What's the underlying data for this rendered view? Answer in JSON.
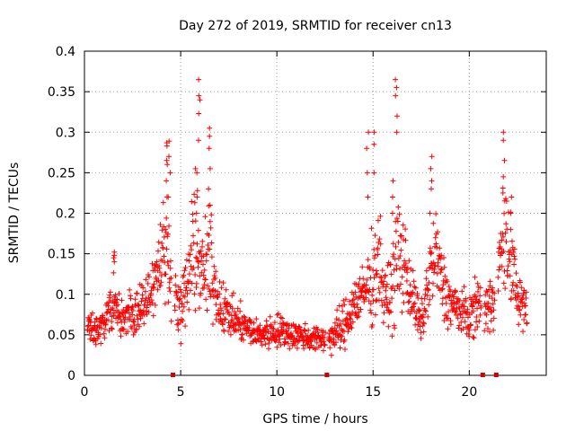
{
  "chart_data": {
    "type": "scatter",
    "title": "Day 272 of 2019, SRMTID for receiver cn13",
    "xlabel": "GPS time / hours",
    "ylabel": "SRMTID / TECUs",
    "xlim": [
      0,
      24
    ],
    "ylim": [
      0,
      0.4
    ],
    "xticks": [
      0,
      5,
      10,
      15,
      20
    ],
    "xtick_labels": [
      "0",
      "5",
      "10",
      "15",
      "20"
    ],
    "yticks": [
      0,
      0.05,
      0.1,
      0.15,
      0.2,
      0.25,
      0.3,
      0.35,
      0.4
    ],
    "ytick_labels": [
      "0",
      "0.05",
      "0.1",
      "0.15",
      "0.2",
      "0.25",
      "0.3",
      "0.35",
      "0.4"
    ],
    "grid": true,
    "marker": "+",
    "color": "#ff0000",
    "gap_marker_color": "#d00000",
    "gap_marker_times": [
      4.6,
      12.6,
      20.7,
      21.4
    ],
    "series": [
      {
        "name": "SRMTID",
        "envelope": {
          "hours": [
            0,
            0.5,
            1,
            1.5,
            2,
            2.5,
            3,
            3.5,
            4,
            4.3,
            4.6,
            5,
            5.5,
            5.8,
            6.1,
            6.5,
            7,
            7.5,
            8,
            9,
            10,
            11,
            12,
            12.5,
            13,
            13.5,
            14,
            14.5,
            15,
            15.3,
            15.6,
            16,
            16.3,
            16.6,
            17,
            17.5,
            18,
            18.3,
            18.6,
            19,
            19.5,
            20,
            20.5,
            21,
            21.5,
            21.8,
            22.2,
            22.6,
            23
          ],
          "median": [
            0.07,
            0.055,
            0.06,
            0.09,
            0.065,
            0.075,
            0.085,
            0.11,
            0.15,
            0.16,
            0.11,
            0.075,
            0.13,
            0.17,
            0.12,
            0.14,
            0.09,
            0.075,
            0.065,
            0.05,
            0.055,
            0.05,
            0.045,
            0.045,
            0.05,
            0.06,
            0.09,
            0.1,
            0.12,
            0.15,
            0.09,
            0.11,
            0.15,
            0.14,
            0.1,
            0.06,
            0.13,
            0.15,
            0.11,
            0.09,
            0.08,
            0.07,
            0.09,
            0.08,
            0.13,
            0.17,
            0.14,
            0.09,
            0.08
          ],
          "spread": [
            0.02,
            0.02,
            0.02,
            0.03,
            0.02,
            0.025,
            0.025,
            0.03,
            0.05,
            0.06,
            0.03,
            0.03,
            0.06,
            0.07,
            0.05,
            0.06,
            0.03,
            0.025,
            0.02,
            0.015,
            0.02,
            0.015,
            0.015,
            0.015,
            0.02,
            0.03,
            0.03,
            0.03,
            0.05,
            0.06,
            0.03,
            0.05,
            0.08,
            0.05,
            0.03,
            0.025,
            0.05,
            0.05,
            0.04,
            0.03,
            0.025,
            0.025,
            0.03,
            0.03,
            0.05,
            0.06,
            0.05,
            0.03,
            0.03
          ]
        },
        "peaks": [
          {
            "x": 1.5,
            "values": [
              0.148,
              0.152,
              0.145,
              0.14
            ]
          },
          {
            "x": 4.3,
            "values": [
              0.265,
              0.287,
              0.283,
              0.26,
              0.24,
              0.22
            ]
          },
          {
            "x": 4.45,
            "values": [
              0.289,
              0.27,
              0.25
            ]
          },
          {
            "x": 5.8,
            "values": [
              0.255,
              0.25,
              0.22,
              0.2
            ]
          },
          {
            "x": 5.95,
            "values": [
              0.365,
              0.345,
              0.34,
              0.323,
              0.29
            ]
          },
          {
            "x": 6.5,
            "values": [
              0.305,
              0.295,
              0.28,
              0.255,
              0.23,
              0.21
            ]
          },
          {
            "x": 14.7,
            "values": [
              0.3,
              0.28,
              0.25,
              0.22
            ]
          },
          {
            "x": 15.05,
            "values": [
              0.3,
              0.285,
              0.25
            ]
          },
          {
            "x": 16.2,
            "values": [
              0.365,
              0.355,
              0.345,
              0.32,
              0.3
            ]
          },
          {
            "x": 16.05,
            "values": [
              0.24,
              0.22,
              0.2
            ]
          },
          {
            "x": 18.0,
            "values": [
              0.27,
              0.255,
              0.24,
              0.23,
              0.2
            ]
          },
          {
            "x": 21.8,
            "values": [
              0.3,
              0.29,
              0.265,
              0.245,
              0.225
            ]
          },
          {
            "x": 22.2,
            "values": [
              0.22,
              0.2,
              0.18
            ]
          }
        ]
      }
    ]
  }
}
